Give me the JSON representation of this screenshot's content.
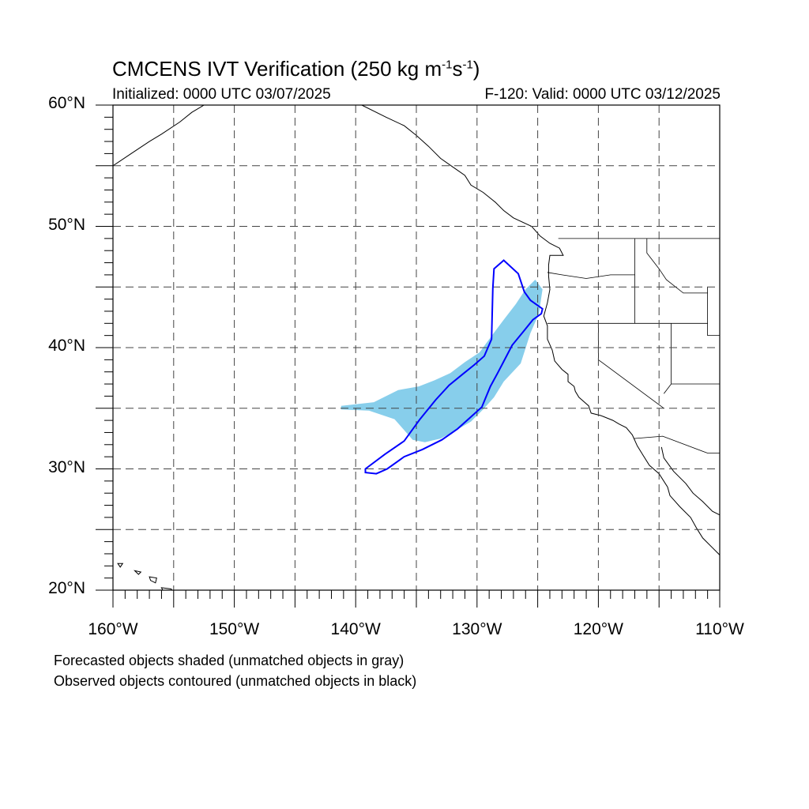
{
  "title": {
    "text": "CMCENS IVT Verification (250 kg m",
    "sup1": "-1",
    "mid": "s",
    "sup2": "-1",
    "end": ")"
  },
  "subtitle_left": "Initialized: 0000 UTC 03/07/2025",
  "subtitle_right": "F-120: Valid: 0000 UTC 03/12/2025",
  "lat_labels": [
    {
      "value": 60,
      "text": "60°N"
    },
    {
      "value": 50,
      "text": "50°N"
    },
    {
      "value": 40,
      "text": "40°N"
    },
    {
      "value": 30,
      "text": "30°N"
    },
    {
      "value": 20,
      "text": "20°N"
    }
  ],
  "lon_labels": [
    {
      "value": -160,
      "text": "160°W"
    },
    {
      "value": -150,
      "text": "150°W"
    },
    {
      "value": -140,
      "text": "140°W"
    },
    {
      "value": -130,
      "text": "130°W"
    },
    {
      "value": -120,
      "text": "120°W"
    },
    {
      "value": -110,
      "text": "110°W"
    }
  ],
  "notes": [
    "Forecasted objects shaded (unmatched objects in gray)",
    "Observed objects contoured (unmatched objects in black)"
  ],
  "map_extent": {
    "lon_min": -160,
    "lon_max": -110,
    "lat_min": 20,
    "lat_max": 60
  },
  "colors": {
    "forecast_fill": "#87ceeb",
    "observed_contour": "#0000ff",
    "coastline": "#000000",
    "grid": "#444444"
  },
  "forecast_object": [
    [
      -141.2,
      35.2
    ],
    [
      -138.5,
      35.5
    ],
    [
      -136.5,
      36.5
    ],
    [
      -134.8,
      36.8
    ],
    [
      -133.5,
      37.3
    ],
    [
      -132.2,
      37.9
    ],
    [
      -131.0,
      38.8
    ],
    [
      -129.8,
      39.6
    ],
    [
      -128.7,
      41.1
    ],
    [
      -127.8,
      42.3
    ],
    [
      -126.8,
      43.6
    ],
    [
      -126.0,
      44.8
    ],
    [
      -125.2,
      45.6
    ],
    [
      -124.6,
      44.8
    ],
    [
      -124.9,
      42.8
    ],
    [
      -125.6,
      41.2
    ],
    [
      -126.4,
      38.7
    ],
    [
      -127.8,
      37.2
    ],
    [
      -128.6,
      35.9
    ],
    [
      -129.5,
      34.9
    ],
    [
      -130.5,
      33.9
    ],
    [
      -131.7,
      33.2
    ],
    [
      -133.0,
      32.5
    ],
    [
      -134.3,
      32.2
    ],
    [
      -135.3,
      32.4
    ],
    [
      -136.8,
      34.1
    ],
    [
      -138.9,
      34.8
    ],
    [
      -141.2,
      34.9
    ]
  ],
  "observed_object": [
    [
      -139.2,
      30.0
    ],
    [
      -137.6,
      31.2
    ],
    [
      -136.0,
      32.3
    ],
    [
      -134.7,
      34.1
    ],
    [
      -133.4,
      35.7
    ],
    [
      -132.3,
      36.9
    ],
    [
      -131.2,
      37.8
    ],
    [
      -130.2,
      38.6
    ],
    [
      -129.4,
      39.3
    ],
    [
      -128.8,
      40.7
    ],
    [
      -128.7,
      44.9
    ],
    [
      -128.6,
      46.5
    ],
    [
      -127.8,
      47.2
    ],
    [
      -126.6,
      46.1
    ],
    [
      -126.1,
      44.6
    ],
    [
      -125.6,
      43.9
    ],
    [
      -124.6,
      43.2
    ],
    [
      -124.7,
      42.8
    ],
    [
      -125.4,
      42.3
    ],
    [
      -126.2,
      41.3
    ],
    [
      -127.1,
      40.2
    ],
    [
      -128.3,
      37.9
    ],
    [
      -128.9,
      36.8
    ],
    [
      -129.6,
      35.1
    ],
    [
      -130.6,
      34.2
    ],
    [
      -131.6,
      33.3
    ],
    [
      -132.9,
      32.4
    ],
    [
      -134.5,
      31.6
    ],
    [
      -136.0,
      31.0
    ],
    [
      -137.4,
      30.0
    ],
    [
      -138.3,
      29.6
    ],
    [
      -139.2,
      29.7
    ]
  ],
  "coastline_west": [
    [
      -139.5,
      60.0
    ],
    [
      -137.5,
      59.0
    ],
    [
      -136.0,
      58.3
    ],
    [
      -135.0,
      57.5
    ],
    [
      -134.0,
      56.6
    ],
    [
      -133.0,
      55.6
    ],
    [
      -132.0,
      54.9
    ],
    [
      -131.0,
      54.2
    ],
    [
      -130.5,
      53.4
    ],
    [
      -129.5,
      52.8
    ],
    [
      -128.5,
      52.0
    ],
    [
      -127.8,
      51.3
    ],
    [
      -127.0,
      50.7
    ],
    [
      -125.5,
      50.0
    ],
    [
      -124.8,
      49.2
    ],
    [
      -124.0,
      48.6
    ],
    [
      -123.2,
      48.2
    ],
    [
      -122.9,
      47.6
    ],
    [
      -124.0,
      47.6
    ],
    [
      -124.1,
      46.8
    ],
    [
      -124.1,
      45.9
    ],
    [
      -124.0,
      44.8
    ],
    [
      -124.2,
      43.7
    ],
    [
      -124.5,
      42.6
    ],
    [
      -124.2,
      41.8
    ],
    [
      -124.2,
      40.7
    ],
    [
      -123.8,
      39.8
    ],
    [
      -123.6,
      38.9
    ],
    [
      -123.0,
      38.2
    ],
    [
      -122.5,
      37.8
    ],
    [
      -122.5,
      37.2
    ],
    [
      -122.0,
      36.8
    ],
    [
      -121.9,
      36.4
    ],
    [
      -121.6,
      35.9
    ],
    [
      -120.8,
      35.2
    ],
    [
      -120.6,
      34.6
    ],
    [
      -119.8,
      34.4
    ],
    [
      -118.8,
      34.0
    ],
    [
      -118.3,
      33.7
    ],
    [
      -117.7,
      33.4
    ],
    [
      -117.2,
      32.8
    ],
    [
      -116.8,
      31.9
    ],
    [
      -116.3,
      31.1
    ],
    [
      -115.8,
      30.3
    ],
    [
      -115.0,
      29.6
    ],
    [
      -114.3,
      28.5
    ],
    [
      -114.1,
      27.8
    ],
    [
      -113.3,
      26.9
    ],
    [
      -112.4,
      26.0
    ],
    [
      -111.9,
      25.1
    ],
    [
      -111.4,
      24.3
    ],
    [
      -110.6,
      23.5
    ],
    [
      -110.0,
      22.9
    ]
  ],
  "coastline_gulf": [
    [
      -114.8,
      31.8
    ],
    [
      -114.6,
      30.9
    ],
    [
      -113.8,
      29.8
    ],
    [
      -112.8,
      28.8
    ],
    [
      -112.2,
      28.0
    ],
    [
      -111.4,
      27.3
    ],
    [
      -110.6,
      26.5
    ],
    [
      -110.0,
      26.2
    ]
  ],
  "coastline_alaska": [
    [
      -160.0,
      55.0
    ],
    [
      -158.5,
      56.0
    ],
    [
      -157.0,
      57.0
    ],
    [
      -156.0,
      57.6
    ],
    [
      -154.5,
      58.6
    ],
    [
      -153.5,
      59.4
    ],
    [
      -152.5,
      60.0
    ]
  ],
  "hawaii": [
    [
      [
        -159.6,
        22.2
      ],
      [
        -159.2,
        22.2
      ],
      [
        -159.4,
        21.9
      ]
    ],
    [
      [
        -158.2,
        21.6
      ],
      [
        -157.7,
        21.5
      ],
      [
        -157.9,
        21.3
      ]
    ],
    [
      [
        -157.0,
        21.1
      ],
      [
        -156.4,
        21.0
      ],
      [
        -156.5,
        20.6
      ],
      [
        -156.9,
        20.8
      ]
    ],
    [
      [
        -156.0,
        20.2
      ],
      [
        -155.2,
        20.1
      ],
      [
        -154.8,
        19.5
      ],
      [
        -155.6,
        19.4
      ]
    ]
  ],
  "borders": [
    [
      [
        -123.3,
        49.0
      ],
      [
        -110.0,
        49.0
      ]
    ],
    [
      [
        -124.2,
        46.2
      ],
      [
        -123.0,
        46.0
      ],
      [
        -121.0,
        45.7
      ],
      [
        -119.0,
        46.0
      ],
      [
        -117.0,
        46.0
      ]
    ],
    [
      [
        -117.0,
        49.0
      ],
      [
        -117.0,
        42.0
      ]
    ],
    [
      [
        -116.0,
        49.0
      ],
      [
        -116.0,
        47.8
      ],
      [
        -115.0,
        46.5
      ],
      [
        -114.4,
        45.6
      ],
      [
        -113.0,
        44.5
      ],
      [
        -111.0,
        44.5
      ]
    ],
    [
      [
        -124.2,
        42.0
      ],
      [
        -111.0,
        42.0
      ]
    ],
    [
      [
        -120.0,
        42.0
      ],
      [
        -120.0,
        39.0
      ],
      [
        -114.6,
        35.0
      ]
    ],
    [
      [
        -114.0,
        42.0
      ],
      [
        -114.0,
        37.0
      ],
      [
        -114.6,
        36.2
      ]
    ],
    [
      [
        -114.0,
        37.0
      ],
      [
        -110.0,
        37.0
      ]
    ],
    [
      [
        -111.0,
        45.0
      ],
      [
        -111.0,
        41.0
      ],
      [
        -110.0,
        41.0
      ]
    ],
    [
      [
        -117.1,
        32.5
      ],
      [
        -114.7,
        32.7
      ],
      [
        -111.0,
        31.3
      ],
      [
        -110.0,
        31.3
      ]
    ]
  ]
}
